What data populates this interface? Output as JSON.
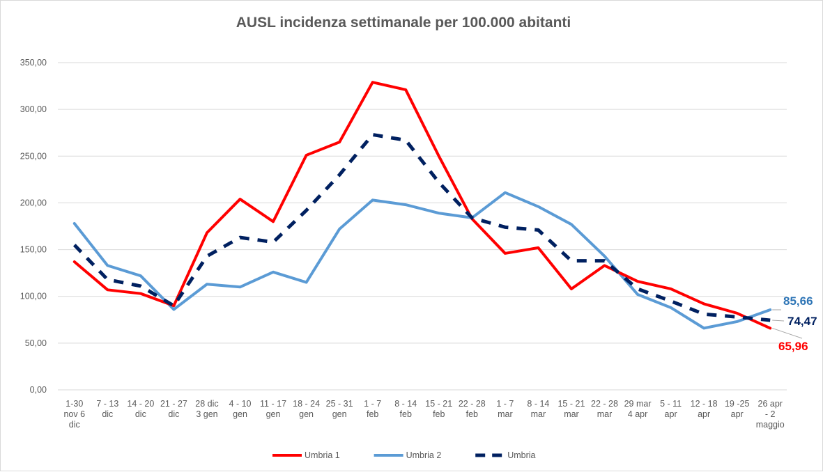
{
  "chart_data": {
    "type": "line",
    "title": "AUSL incidenza settimanale per 100.000 abitanti",
    "xlabel": "",
    "ylabel": "",
    "ylim": [
      0,
      350
    ],
    "yticks": [
      "0,00",
      "50,00",
      "100,00",
      "150,00",
      "200,00",
      "250,00",
      "300,00",
      "350,00"
    ],
    "categories": [
      [
        "1-30",
        "nov 6",
        "dic"
      ],
      [
        "7 - 13",
        "dic"
      ],
      [
        "14 - 20",
        "dic"
      ],
      [
        "21 - 27",
        "dic"
      ],
      [
        "28 dic",
        "3 gen"
      ],
      [
        "4 - 10",
        "gen"
      ],
      [
        "11 - 17",
        "gen"
      ],
      [
        "18 - 24",
        "gen"
      ],
      [
        "25 - 31",
        "gen"
      ],
      [
        "1 - 7",
        "feb"
      ],
      [
        "8 - 14",
        "feb"
      ],
      [
        "15 - 21",
        "feb"
      ],
      [
        "22 - 28",
        "feb"
      ],
      [
        "1 - 7",
        "mar"
      ],
      [
        "8 - 14",
        "mar"
      ],
      [
        "15 - 21",
        "mar"
      ],
      [
        "22 - 28",
        "mar"
      ],
      [
        "29 mar",
        "4 apr"
      ],
      [
        "5 - 11",
        "apr"
      ],
      [
        "12 - 18",
        "apr"
      ],
      [
        "19 -25",
        "apr"
      ],
      [
        "26 apr",
        "- 2",
        "maggio"
      ]
    ],
    "grid": true,
    "legend": "bottom",
    "series": [
      {
        "name": "Umbria 1",
        "color": "#ff0000",
        "style": "solid",
        "values": [
          137,
          107,
          103,
          90,
          168,
          204,
          180,
          251,
          265,
          329,
          321,
          250,
          183,
          146,
          152,
          108,
          133,
          116,
          108,
          92,
          82,
          65.96
        ],
        "end_label": "65,96"
      },
      {
        "name": "Umbria 2",
        "color": "#5b9bd5",
        "style": "solid",
        "values": [
          178,
          133,
          122,
          86,
          113,
          110,
          126,
          115,
          172,
          203,
          198,
          189,
          184,
          211,
          196,
          177,
          143,
          102,
          88,
          66,
          73,
          85.66
        ],
        "end_label": "85,66"
      },
      {
        "name": "Umbria",
        "color": "#002060",
        "style": "dashed",
        "values": [
          155,
          118,
          111,
          90,
          143,
          163,
          158,
          192,
          230,
          273,
          267,
          222,
          184,
          174,
          171,
          138,
          138,
          108,
          95,
          81,
          78,
          74.47
        ],
        "end_label": "74,47"
      }
    ]
  }
}
